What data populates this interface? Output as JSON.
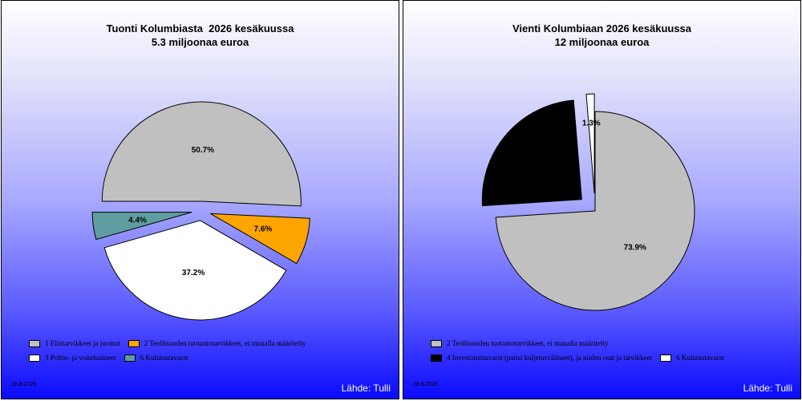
{
  "chart_data": [
    {
      "type": "pie",
      "title": "Tuonti Kolumbiasta  2026 kesäkuussa",
      "subtitle": "5.3 miljoonaa euroa",
      "slices": [
        {
          "label": "1 Elintarvikkeet ja juomat",
          "value": 50.7,
          "pct_label": "50.7%",
          "color": "#c0c0c0",
          "exploded": true
        },
        {
          "label": "2 Teollisuuden tuotantotarvikkeet, ei muualla määritelty",
          "value": 7.6,
          "pct_label": "7.6%",
          "color": "#ffa500",
          "exploded": true
        },
        {
          "label": "3 Poltto- ja voiteluaineet",
          "value": 37.2,
          "pct_label": "37.2%",
          "color": "#ffffff",
          "exploded": true
        },
        {
          "label": "6 Kulutustavarat",
          "value": 4.4,
          "pct_label": "4.4%",
          "color": "#5f9ea0",
          "exploded": true
        }
      ],
      "legend_rows": [
        [
          0,
          1
        ],
        [
          2,
          3
        ]
      ],
      "date": "28.8.2026",
      "source": "Lähde: Tulli"
    },
    {
      "type": "pie",
      "title": "Vienti Kolumbiaan 2026 kesäkuussa",
      "subtitle": "12 miljoonaa euroa",
      "slices": [
        {
          "label": "2 Teollisuuden tuotantotarvikkeet, ei muualla määritelty",
          "value": 73.9,
          "pct_label": "73.9%",
          "color": "#c0c0c0",
          "exploded": false
        },
        {
          "label": "4 Investointitavarat (paitsi kuljetusvälineet), ja niiden osat ja tarvikkeet",
          "value": 24.7,
          "pct_label": "24.7%",
          "color": "#000000",
          "exploded": true
        },
        {
          "label": "6 Kulutustavarat",
          "value": 1.3,
          "pct_label": "1.3%",
          "color": "#ffffff",
          "exploded": true
        }
      ],
      "legend_rows": [
        [
          0
        ],
        [
          1,
          2
        ]
      ],
      "date": "28.8.2026",
      "source": "Lähde: Tulli"
    }
  ]
}
